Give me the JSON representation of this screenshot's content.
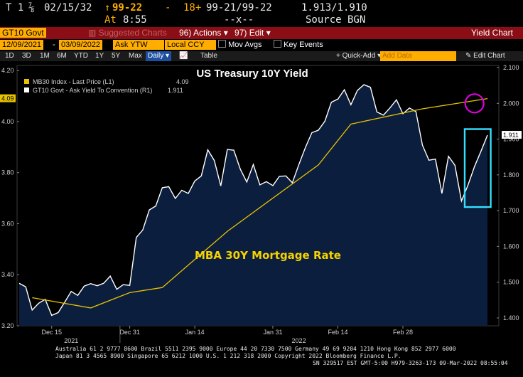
{
  "quote": {
    "t_label": "T 1",
    "coupon": "⅞",
    "maturity": "02/15/32",
    "arrow": "↑",
    "price": "99-22",
    "change": "-",
    "change_ticks": "18+",
    "bid_ask": "99-21/99-22",
    "yields": "1.913/1.910",
    "at_label": "At",
    "time": "8:55",
    "mid": "--x--",
    "source": "Source BGN"
  },
  "titlebar": {
    "ticker": "GT10 Govt",
    "suggested": "Suggested Charts",
    "actions": "Actions",
    "edit": "Edit",
    "title": "Yield Chart"
  },
  "row2": {
    "start_date": "12/09/2021",
    "end_date": "03/09/2022",
    "field": "Ask YTW",
    "currency": "Local CCY",
    "mov_avgs": "Mov Avgs",
    "key_events": "Key Events"
  },
  "row3": {
    "periods": [
      "1D",
      "3D",
      "1M",
      "6M",
      "YTD",
      "1Y",
      "5Y",
      "Max"
    ],
    "frequency": "Daily",
    "table": "Table",
    "quick_add": "+ Quick-Add",
    "add_data_placeholder": "Add Data",
    "edit_chart": "Edit Chart"
  },
  "chart_data": {
    "type": "line",
    "title": "US Treasury 10Y Yield",
    "annotation": "MBA 30Y Mortgage Rate",
    "legend": [
      {
        "label": "MB30 Index - Last Price (L1)",
        "value": "4.09",
        "color": "#e8c200"
      },
      {
        "label": "GT10 Govt - Ask Yield To Convention (R1)",
        "value": "1.911",
        "color": "#ffffff"
      }
    ],
    "left_axis": {
      "range": [
        3.2,
        4.22
      ],
      "ticks": [
        "4.20",
        "4.00",
        "3.80",
        "3.60",
        "3.40",
        "3.20"
      ],
      "current_label": "4.09"
    },
    "right_axis": {
      "range": [
        1.378,
        2.106
      ],
      "ticks": [
        "2.100",
        "2.000",
        "1.900",
        "1.800",
        "1.700",
        "1.600",
        "1.500",
        "1.400"
      ],
      "current_label": "1.911"
    },
    "x_ticks": [
      "Dec 15",
      "Dec 31",
      "Jan 14",
      "Jan 31",
      "Feb 14",
      "Feb 28"
    ],
    "year_labels": [
      "2021",
      "2022"
    ],
    "series": [
      {
        "name": "GT10 Govt - Ask Yield To Convention (R1)",
        "axis": "right",
        "color": "#ffffff",
        "fill": "#0c1e3d",
        "values": [
          1.497,
          1.487,
          1.422,
          1.441,
          1.452,
          1.407,
          1.415,
          1.444,
          1.474,
          1.463,
          1.489,
          1.496,
          1.49,
          1.497,
          1.517,
          1.48,
          1.493,
          1.491,
          1.625,
          1.646,
          1.702,
          1.713,
          1.764,
          1.767,
          1.734,
          1.757,
          1.748,
          1.783,
          1.797,
          1.87,
          1.84,
          1.769,
          1.871,
          1.869,
          1.816,
          1.78,
          1.829,
          1.772,
          1.781,
          1.77,
          1.796,
          1.797,
          1.778,
          1.829,
          1.876,
          1.918,
          1.925,
          1.95,
          2.003,
          2.012,
          2.038,
          1.996,
          2.036,
          2.052,
          2.045,
          1.976,
          1.967,
          1.987,
          2.01,
          1.971,
          1.987,
          1.977,
          1.883,
          1.841,
          1.844,
          1.748,
          1.852,
          1.827,
          1.727,
          1.771,
          1.823,
          1.866,
          1.911
        ]
      },
      {
        "name": "MB30 Index - Last Price (L1)",
        "axis": "left",
        "color": "#e8c200",
        "x_index": [
          2,
          11,
          17,
          22,
          32,
          46,
          51,
          62,
          72
        ],
        "values": [
          3.31,
          3.27,
          3.33,
          3.35,
          3.57,
          3.83,
          3.99,
          4.05,
          4.09
        ]
      }
    ],
    "highlights": [
      {
        "shape": "circle",
        "color": "#e000e0",
        "x_index": 70,
        "right_value": 2.0
      },
      {
        "shape": "rectangle",
        "color": "#34e0ff",
        "x_from_index": 68.5,
        "x_to_index": 72.5,
        "right_value_from": 1.71,
        "right_value_to": 1.928
      }
    ]
  },
  "footer": {
    "line1": "Australia 61 2 9777 8600 Brazil 5511 2395 9000 Europe 44 20 7330 7500 Germany 49 69 9204 1210 Hong Kong 852 2977 6000",
    "line2": "Japan 81 3 4565 8900        Singapore 65 6212 1000     U.S. 1 212 318 2000        Copyright 2022 Bloomberg Finance L.P.",
    "line3": "SN 329517 EST  GMT-5:00 H979-3263-173 09-Mar-2022 08:55:04"
  }
}
